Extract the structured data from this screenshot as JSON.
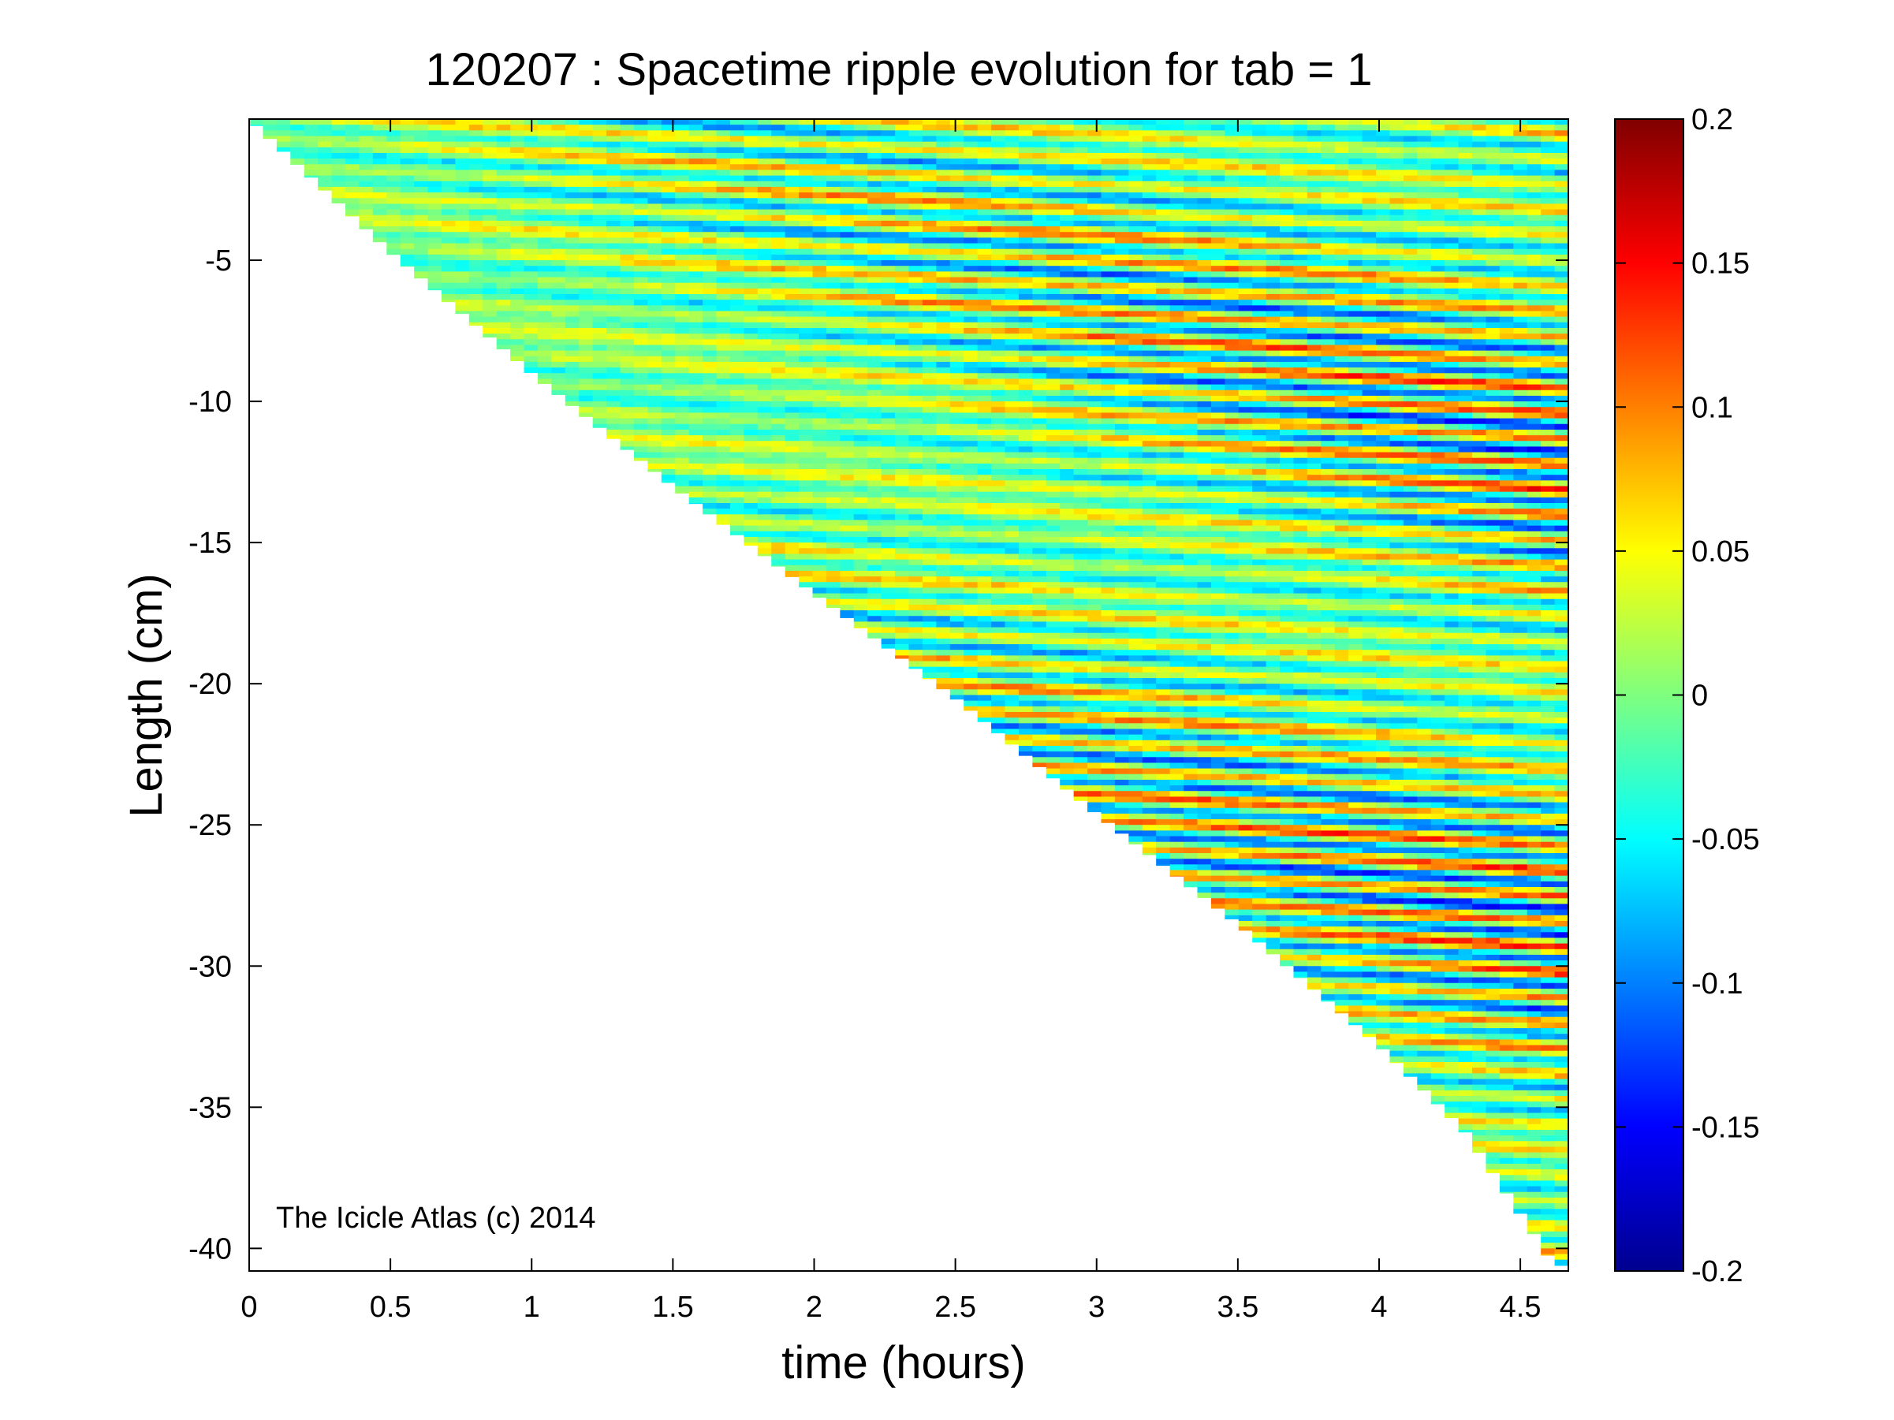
{
  "chart_data": {
    "type": "heatmap",
    "title": "120207 : Spacetime ripple evolution for tab = 1",
    "xlabel": "time (hours)",
    "ylabel": "Length (cm)",
    "xlim": [
      0,
      4.67
    ],
    "ylim": [
      -40.8,
      0
    ],
    "xticks": [
      0,
      0.5,
      1,
      1.5,
      2,
      2.5,
      3,
      3.5,
      4,
      4.5
    ],
    "xtick_labels": [
      "0",
      "0.5",
      "1",
      "1.5",
      "2",
      "2.5",
      "3",
      "3.5",
      "4",
      "4.5"
    ],
    "yticks": [
      -5,
      -10,
      -15,
      -20,
      -25,
      -30,
      -35,
      -40
    ],
    "ytick_labels": [
      "-5",
      "-10",
      "-15",
      "-20",
      "-25",
      "-30",
      "-35",
      "-40"
    ],
    "colorbar": {
      "range": [
        -0.2,
        0.2
      ],
      "colormap": "jet",
      "ticks": [
        0.2,
        0.15,
        0.1,
        0.05,
        0,
        -0.05,
        -0.1,
        -0.15,
        -0.2
      ],
      "tick_labels": [
        "0.2",
        "0.15",
        "0.1",
        "0.05",
        "0",
        "-0.05",
        "-0.1",
        "-0.15",
        "-0.2"
      ]
    },
    "data_extent": {
      "description": "valid data exists only below the icicle length curve; length grows roughly linearly with time",
      "length_curve": [
        [
          0,
          0
        ],
        [
          0.5,
          -4.7
        ],
        [
          1,
          -9.0
        ],
        [
          1.5,
          -13.0
        ],
        [
          2,
          -16.8
        ],
        [
          2.5,
          -20.5
        ],
        [
          3,
          -24.6
        ],
        [
          3.5,
          -28.5
        ],
        [
          4,
          -32.8
        ],
        [
          4.3,
          -35.8
        ],
        [
          4.55,
          -39.5
        ],
        [
          4.62,
          -40.6
        ]
      ]
    },
    "ripple_wavelength_cm": 0.9,
    "grid": false,
    "annotation": "The Icicle Atlas (c) 2014"
  },
  "colors": {
    "background": "#ffffff",
    "axes": "#000000"
  }
}
